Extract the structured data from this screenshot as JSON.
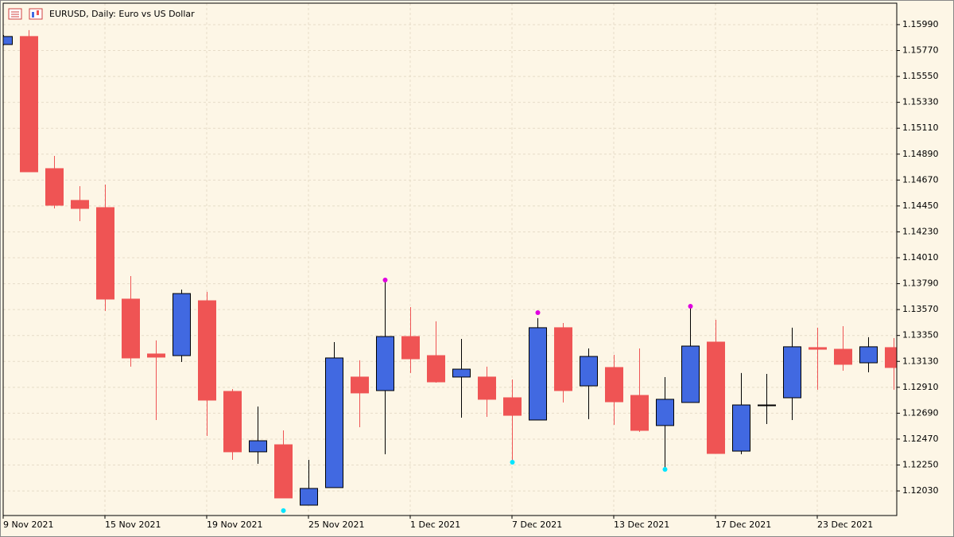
{
  "chart_data": {
    "type": "candlestick",
    "title": "EURUSD, Daily:  Euro vs US Dollar",
    "categories": [
      "9 Nov 2021",
      null,
      null,
      null,
      "15 Nov 2021",
      null,
      null,
      null,
      "19 Nov 2021",
      null,
      null,
      null,
      "25 Nov 2021",
      null,
      null,
      null,
      "1 Dec 2021",
      null,
      null,
      null,
      "7 Dec 2021",
      null,
      null,
      null,
      "13 Dec 2021",
      null,
      null,
      null,
      "17 Dec 2021",
      null,
      null,
      null,
      "23 Dec 2021",
      null,
      null,
      null
    ],
    "open": [
      1.15821,
      1.15889,
      1.14767,
      1.14497,
      1.14436,
      1.13659,
      1.13193,
      1.13179,
      1.13645,
      1.12875,
      1.12362,
      1.12422,
      1.11909,
      1.12058,
      1.12997,
      1.12882,
      1.13341,
      1.13179,
      1.12997,
      1.12997,
      1.12821,
      1.12632,
      1.13416,
      1.12922,
      1.13078,
      1.12841,
      1.12585,
      1.12781,
      1.13294,
      1.12368,
      1.1276,
      1.12821,
      1.13247,
      1.13233,
      1.13118,
      1.13247
    ],
    "high": [
      1.15902,
      1.15943,
      1.14875,
      1.14618,
      1.14632,
      1.13855,
      1.13308,
      1.1374,
      1.1372,
      1.12895,
      1.12747,
      1.12544,
      1.12294,
      1.13294,
      1.13139,
      1.13821,
      1.13591,
      1.1347,
      1.13321,
      1.13085,
      1.12976,
      1.13497,
      1.13456,
      1.1324,
      1.13186,
      1.1324,
      1.12997,
      1.13598,
      1.13483,
      1.13031,
      1.13024,
      1.13416,
      1.13416,
      1.13429,
      1.13335,
      1.13328
    ],
    "low": [
      1.15814,
      1.1474,
      1.14429,
      1.14321,
      1.13558,
      1.13085,
      1.12632,
      1.13125,
      1.12497,
      1.12294,
      1.1226,
      1.1197,
      1.11909,
      1.12058,
      1.12571,
      1.12341,
      1.13031,
      1.12949,
      1.12652,
      1.12659,
      1.12274,
      1.12632,
      1.12781,
      1.12639,
      1.12591,
      1.12531,
      1.1222,
      1.12781,
      1.12348,
      1.12341,
      1.12598,
      1.12632,
      1.12889,
      1.13051,
      1.13037,
      1.12889
    ],
    "close": [
      1.15889,
      1.1474,
      1.14456,
      1.14429,
      1.13659,
      1.13159,
      1.13166,
      1.13706,
      1.12801,
      1.12362,
      1.12456,
      1.1197,
      1.12051,
      1.13159,
      1.12862,
      1.13341,
      1.13152,
      1.12956,
      1.13064,
      1.12808,
      1.12672,
      1.13416,
      1.12882,
      1.13172,
      1.12787,
      1.12544,
      1.12808,
      1.1326,
      1.12348,
      1.1276,
      1.1276,
      1.13254,
      1.13233,
      1.13105,
      1.13254,
      1.13078
    ],
    "up_color": "#4169e1",
    "down_color": "#ef5454",
    "doji_color": "#000000",
    "markers": [
      {
        "index": 15,
        "value": 1.13821,
        "color": "#e000e0"
      },
      {
        "index": 21,
        "value": 1.13544,
        "color": "#e000e0"
      },
      {
        "index": 27,
        "value": 1.13598,
        "color": "#e000e0"
      },
      {
        "index": 11,
        "value": 1.11862,
        "color": "#00e5ff"
      },
      {
        "index": 20,
        "value": 1.12274,
        "color": "#00e5ff"
      },
      {
        "index": 26,
        "value": 1.12213,
        "color": "#00e5ff"
      }
    ],
    "ylim": [
      1.11821,
      1.16172
    ],
    "yticks": [
      {
        "value": 1.1599,
        "label": "1.15990"
      },
      {
        "value": 1.1577,
        "label": "1.15770"
      },
      {
        "value": 1.1555,
        "label": "1.15550"
      },
      {
        "value": 1.1533,
        "label": "1.15330"
      },
      {
        "value": 1.1511,
        "label": "1.15110"
      },
      {
        "value": 1.1489,
        "label": "1.14890"
      },
      {
        "value": 1.1467,
        "label": "1.14670"
      },
      {
        "value": 1.1445,
        "label": "1.14450"
      },
      {
        "value": 1.1423,
        "label": "1.14230"
      },
      {
        "value": 1.1401,
        "label": "1.14010"
      },
      {
        "value": 1.1379,
        "label": "1.13790"
      },
      {
        "value": 1.1357,
        "label": "1.13570"
      },
      {
        "value": 1.1335,
        "label": "1.13350"
      },
      {
        "value": 1.1313,
        "label": "1.13130"
      },
      {
        "value": 1.1291,
        "label": "1.12910"
      },
      {
        "value": 1.1269,
        "label": "1.12690"
      },
      {
        "value": 1.1247,
        "label": "1.12470"
      },
      {
        "value": 1.1225,
        "label": "1.12250"
      },
      {
        "value": 1.1203,
        "label": "1.12030"
      }
    ],
    "grid": true
  }
}
